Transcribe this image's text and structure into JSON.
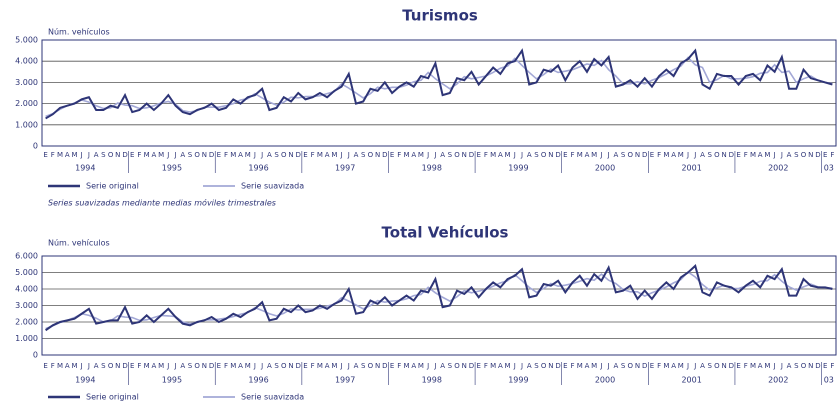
{
  "chart_data": [
    {
      "type": "line",
      "title": "Turismos",
      "y_label": "Núm. vehículos",
      "categories": [
        "E",
        "F",
        "M",
        "A",
        "M",
        "J",
        "J",
        "A",
        "S",
        "O",
        "N",
        "D",
        "E",
        "F",
        "M",
        "A",
        "M",
        "J",
        "J",
        "A",
        "S",
        "O",
        "N",
        "D",
        "E",
        "F",
        "M",
        "A",
        "M",
        "J",
        "J",
        "A",
        "S",
        "O",
        "N",
        "D",
        "E",
        "F",
        "M",
        "A",
        "M",
        "J",
        "J",
        "A",
        "S",
        "O",
        "N",
        "D",
        "E",
        "F",
        "M",
        "A",
        "M",
        "J",
        "J",
        "A",
        "S",
        "O",
        "N",
        "D",
        "E",
        "F",
        "M",
        "A",
        "M",
        "J",
        "J",
        "A",
        "S",
        "O",
        "N",
        "D",
        "E",
        "F",
        "M",
        "A",
        "M",
        "J",
        "J",
        "A",
        "S",
        "O",
        "N",
        "D",
        "E",
        "F",
        "M",
        "A",
        "M",
        "J",
        "J",
        "A",
        "S",
        "O",
        "N",
        "D",
        "E",
        "F",
        "M",
        "A",
        "M",
        "J",
        "J",
        "A",
        "S",
        "O",
        "N",
        "D",
        "E",
        "F"
      ],
      "years": [
        "1994",
        "1995",
        "1996",
        "1997",
        "1998",
        "1999",
        "2000",
        "2001",
        "2002",
        "03"
      ],
      "ylim": [
        0,
        5000
      ],
      "yticks": [
        0,
        {
          "value": 1000,
          "label": "1.000"
        },
        {
          "value": 2000,
          "label": "2.000"
        },
        {
          "value": 3000,
          "label": "3.000"
        },
        {
          "value": 4000,
          "label": "4.000"
        },
        {
          "value": 5000,
          "label": "5.000"
        }
      ],
      "grid": true,
      "series": [
        {
          "name": "Serie original",
          "color": "#2e3577",
          "values": [
            1300,
            1500,
            1800,
            1900,
            2000,
            2200,
            2300,
            1700,
            1700,
            1900,
            1800,
            2400,
            1600,
            1700,
            2000,
            1700,
            2000,
            2400,
            1900,
            1600,
            1500,
            1700,
            1800,
            2000,
            1700,
            1800,
            2200,
            2000,
            2300,
            2400,
            2700,
            1700,
            1800,
            2300,
            2100,
            2500,
            2200,
            2300,
            2500,
            2300,
            2600,
            2800,
            3400,
            2000,
            2100,
            2700,
            2600,
            3000,
            2500,
            2800,
            3000,
            2800,
            3300,
            3200,
            3900,
            2400,
            2500,
            3200,
            3100,
            3500,
            2900,
            3300,
            3700,
            3400,
            3900,
            4000,
            4500,
            2900,
            3000,
            3600,
            3500,
            3800,
            3100,
            3700,
            4000,
            3500,
            4100,
            3800,
            4200,
            2800,
            2900,
            3100,
            2800,
            3200,
            2800,
            3300,
            3600,
            3300,
            3900,
            4100,
            4500,
            2900,
            2700,
            3400,
            3300,
            3300,
            2900,
            3300,
            3400,
            3100,
            3800,
            3500,
            4200,
            2700,
            2700,
            3600,
            3200,
            3100,
            3000,
            2900
          ]
        },
        {
          "name": "Serie suavizada",
          "color": "#a3a8d6",
          "values": [
            1400,
            1530,
            1730,
            1900,
            2030,
            2170,
            2070,
            1900,
            1770,
            1800,
            2030,
            1930,
            1900,
            1770,
            1800,
            1900,
            2030,
            2100,
            1970,
            1670,
            1600,
            1670,
            1830,
            1830,
            1830,
            1900,
            2000,
            2170,
            2230,
            2470,
            2270,
            2070,
            1930,
            2070,
            2300,
            2270,
            2330,
            2330,
            2370,
            2470,
            2570,
            2930,
            2730,
            2500,
            2270,
            2470,
            2770,
            2700,
            2770,
            2770,
            2870,
            3030,
            3100,
            3470,
            3170,
            2930,
            2700,
            2930,
            3270,
            3170,
            3230,
            3300,
            3470,
            3670,
            3770,
            4130,
            3800,
            3470,
            3170,
            3370,
            3630,
            3470,
            3530,
            3600,
            3730,
            3870,
            3800,
            4030,
            3600,
            3300,
            2930,
            2930,
            3030,
            2930,
            3100,
            3230,
            3400,
            3600,
            3770,
            4170,
            3830,
            3700,
            3000,
            3130,
            3330,
            3170,
            3170,
            3200,
            3270,
            3430,
            3470,
            3830,
            3470,
            3530,
            3000,
            3170,
            3300,
            3100,
            3000,
            2950
          ]
        }
      ],
      "note": "Series suavizadas mediante medias móviles trimestrales"
    },
    {
      "type": "line",
      "title": "Total Vehículos",
      "y_label": "Núm. vehículos",
      "categories": [
        "E",
        "F",
        "M",
        "A",
        "M",
        "J",
        "J",
        "A",
        "S",
        "O",
        "N",
        "D",
        "E",
        "F",
        "M",
        "A",
        "M",
        "J",
        "J",
        "A",
        "S",
        "O",
        "N",
        "D",
        "E",
        "F",
        "M",
        "A",
        "M",
        "J",
        "J",
        "A",
        "S",
        "O",
        "N",
        "D",
        "E",
        "F",
        "M",
        "A",
        "M",
        "J",
        "J",
        "A",
        "S",
        "O",
        "N",
        "D",
        "E",
        "F",
        "M",
        "A",
        "M",
        "J",
        "J",
        "A",
        "S",
        "O",
        "N",
        "D",
        "E",
        "F",
        "M",
        "A",
        "M",
        "J",
        "J",
        "A",
        "S",
        "O",
        "N",
        "D",
        "E",
        "F",
        "M",
        "A",
        "M",
        "J",
        "J",
        "A",
        "S",
        "O",
        "N",
        "D",
        "E",
        "F",
        "M",
        "A",
        "M",
        "J",
        "J",
        "A",
        "S",
        "O",
        "N",
        "D",
        "E",
        "F",
        "M",
        "A",
        "M",
        "J",
        "J",
        "A",
        "S",
        "O",
        "N",
        "D",
        "E",
        "F"
      ],
      "years": [
        "1994",
        "1995",
        "1996",
        "1997",
        "1998",
        "1999",
        "2000",
        "2001",
        "2002",
        "03"
      ],
      "ylim": [
        0,
        6000
      ],
      "yticks": [
        0,
        {
          "value": 1000,
          "label": "1.000"
        },
        {
          "value": 2000,
          "label": "2.000"
        },
        {
          "value": 3000,
          "label": "3.000"
        },
        {
          "value": 4000,
          "label": "4.000"
        },
        {
          "value": 5000,
          "label": "5.000"
        },
        {
          "value": 6000,
          "label": "6.000"
        }
      ],
      "grid": true,
      "series": [
        {
          "name": "Serie original",
          "color": "#2e3577",
          "values": [
            1500,
            1800,
            2000,
            2100,
            2200,
            2500,
            2800,
            1900,
            2000,
            2100,
            2100,
            2900,
            1900,
            2000,
            2400,
            2000,
            2400,
            2800,
            2300,
            1900,
            1800,
            2000,
            2100,
            2300,
            2000,
            2200,
            2500,
            2300,
            2600,
            2800,
            3200,
            2100,
            2200,
            2800,
            2600,
            3000,
            2600,
            2700,
            3000,
            2800,
            3100,
            3300,
            4000,
            2500,
            2600,
            3300,
            3100,
            3500,
            3000,
            3300,
            3600,
            3300,
            3900,
            3800,
            4600,
            2900,
            3000,
            3900,
            3700,
            4100,
            3500,
            4000,
            4400,
            4100,
            4600,
            4800,
            5200,
            3500,
            3600,
            4300,
            4200,
            4500,
            3800,
            4400,
            4800,
            4200,
            4900,
            4500,
            5300,
            3800,
            3900,
            4200,
            3400,
            3900,
            3400,
            4000,
            4400,
            4000,
            4700,
            5000,
            5400,
            3800,
            3600,
            4400,
            4200,
            4100,
            3800,
            4200,
            4500,
            4100,
            4800,
            4600,
            5200,
            3600,
            3600,
            4600,
            4200,
            4100,
            4100,
            4000
          ]
        },
        {
          "name": "Serie suavizada",
          "color": "#a3a8d6",
          "values": [
            1600,
            1770,
            1970,
            2100,
            2270,
            2500,
            2400,
            2230,
            2000,
            2070,
            2370,
            2300,
            2270,
            2100,
            2130,
            2270,
            2400,
            2370,
            2330,
            2000,
            1900,
            1970,
            2130,
            2130,
            2170,
            2230,
            2330,
            2470,
            2570,
            2870,
            2700,
            2500,
            2370,
            2530,
            2800,
            2730,
            2770,
            2770,
            2830,
            2970,
            3070,
            3470,
            3270,
            3030,
            2800,
            3000,
            3300,
            3200,
            3270,
            3300,
            3400,
            3600,
            3670,
            4100,
            3770,
            3500,
            3270,
            3530,
            3900,
            3770,
            3870,
            3970,
            4170,
            4370,
            4500,
            4870,
            4500,
            4100,
            3800,
            4030,
            4330,
            4170,
            4230,
            4330,
            4470,
            4630,
            4530,
            4900,
            4530,
            4330,
            3970,
            3830,
            3830,
            3570,
            3770,
            3930,
            4130,
            4370,
            4570,
            5030,
            4730,
            4270,
            3930,
            4070,
            4230,
            4030,
            4030,
            4170,
            4270,
            4470,
            4500,
            4870,
            4470,
            4130,
            3930,
            4130,
            4300,
            4130,
            4070,
            4050
          ]
        }
      ]
    }
  ]
}
